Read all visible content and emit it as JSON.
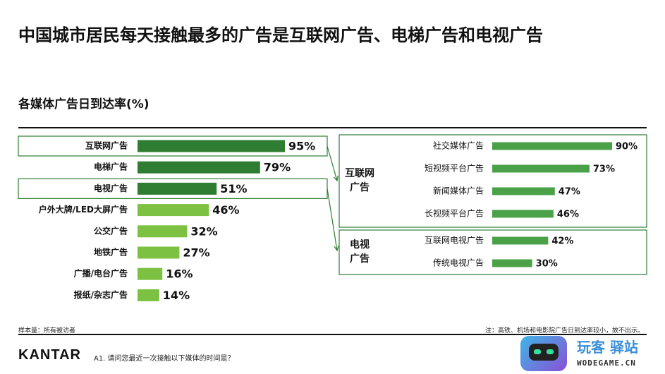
{
  "header": {
    "title": "中国城市居民每天接触最多的广告是互联网广告、电梯广告和电视广告",
    "subtitle": "各媒体广告日到达率(%)"
  },
  "footer": {
    "sample": "样本量：所有被访者",
    "note": "注：高铁、机场和电影院广告日到达率较小，故不出示。",
    "brand": "KANTAR",
    "question": "A1. 请问您最近一次接触以下媒体的时间是？"
  },
  "watermark": {
    "name": "玩客 驿站",
    "domain": "WODEGAME.CN"
  },
  "colors": {
    "dark_green": "#2e7d32",
    "light_green": "#7cc142",
    "mid_green": "#4aa147",
    "box_stroke": "#2e7d32"
  },
  "chart_data": [
    {
      "type": "bar",
      "orientation": "horizontal",
      "categories": [
        "互联网广告",
        "电梯广告",
        "电视广告",
        "户外大牌/LED大屏广告",
        "公交广告",
        "地铁广告",
        "广播/电台广告",
        "报纸/杂志广告"
      ],
      "values": [
        95,
        79,
        51,
        46,
        32,
        27,
        16,
        14
      ],
      "value_labels": [
        "95%",
        "79%",
        "51%",
        "46%",
        "32%",
        "27%",
        "16%",
        "14%"
      ],
      "highlight": [
        true,
        true,
        true,
        false,
        false,
        false,
        false,
        false
      ],
      "boxed": [
        "互联网广告",
        "电视广告"
      ]
    },
    {
      "type": "bar",
      "orientation": "horizontal",
      "group_label": "互联网广告",
      "categories": [
        "社交媒体广告",
        "短视频平台广告",
        "新闻媒体广告",
        "长视频平台广告"
      ],
      "values": [
        90,
        73,
        47,
        46
      ],
      "value_labels": [
        "90%",
        "73%",
        "47%",
        "46%"
      ]
    },
    {
      "type": "bar",
      "orientation": "horizontal",
      "group_label": "电视广告",
      "categories": [
        "互联网电视广告",
        "传统电视广告"
      ],
      "values": [
        42,
        30
      ],
      "value_labels": [
        "42%",
        "30%"
      ]
    }
  ]
}
